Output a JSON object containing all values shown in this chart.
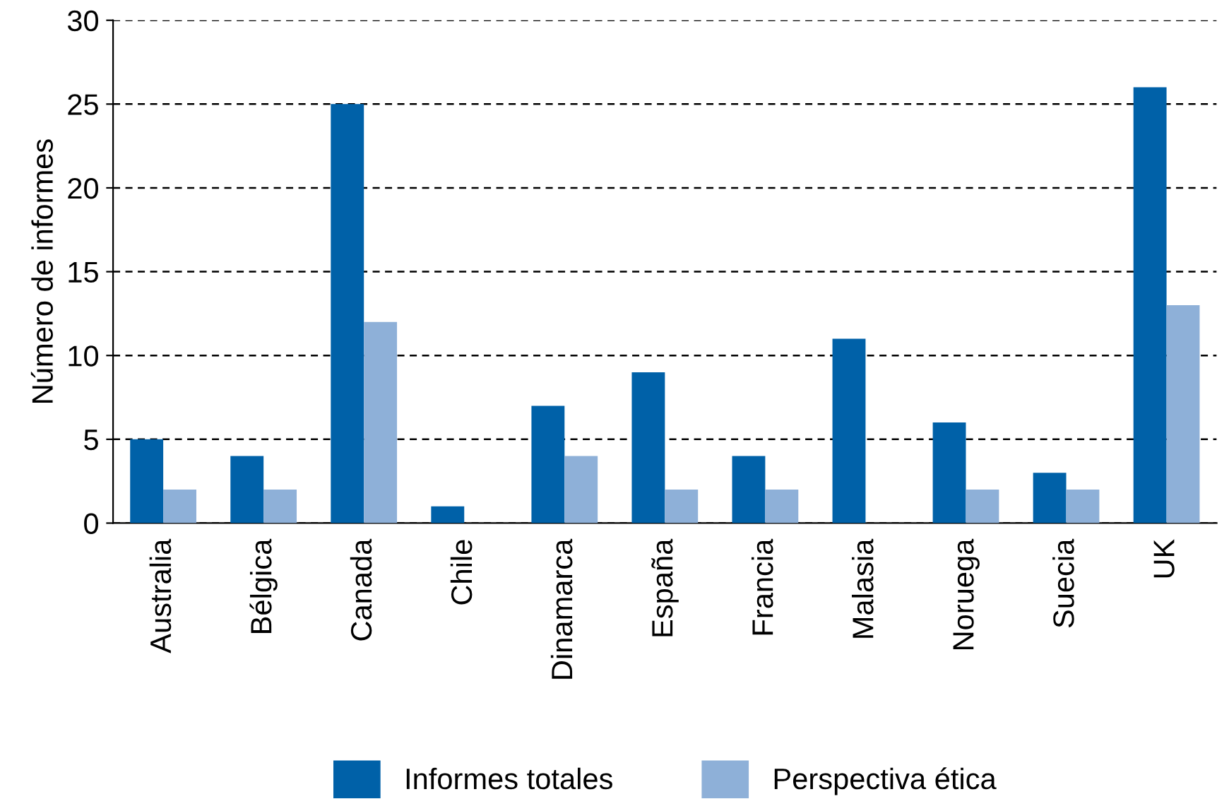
{
  "chart_data": {
    "type": "bar",
    "ylabel": "Número de informes",
    "categories": [
      "Australia",
      "Bélgica",
      "Canada",
      "Chile",
      "Dinamarca",
      "España",
      "Francia",
      "Malasia",
      "Noruega",
      "Suecia",
      "UK"
    ],
    "series": [
      {
        "name": "Informes totales",
        "color": "#0061a8",
        "values": [
          5,
          4,
          25,
          1,
          7,
          9,
          4,
          11,
          6,
          3,
          26
        ]
      },
      {
        "name": "Perspectiva ética",
        "color": "#8eb0d8",
        "values": [
          2,
          2,
          12,
          0,
          4,
          2,
          2,
          0,
          2,
          2,
          13
        ]
      }
    ],
    "ylim": [
      0,
      30
    ],
    "yticks": [
      0,
      5,
      10,
      15,
      20,
      25,
      30
    ],
    "grid": "y",
    "legend": "bottom"
  }
}
